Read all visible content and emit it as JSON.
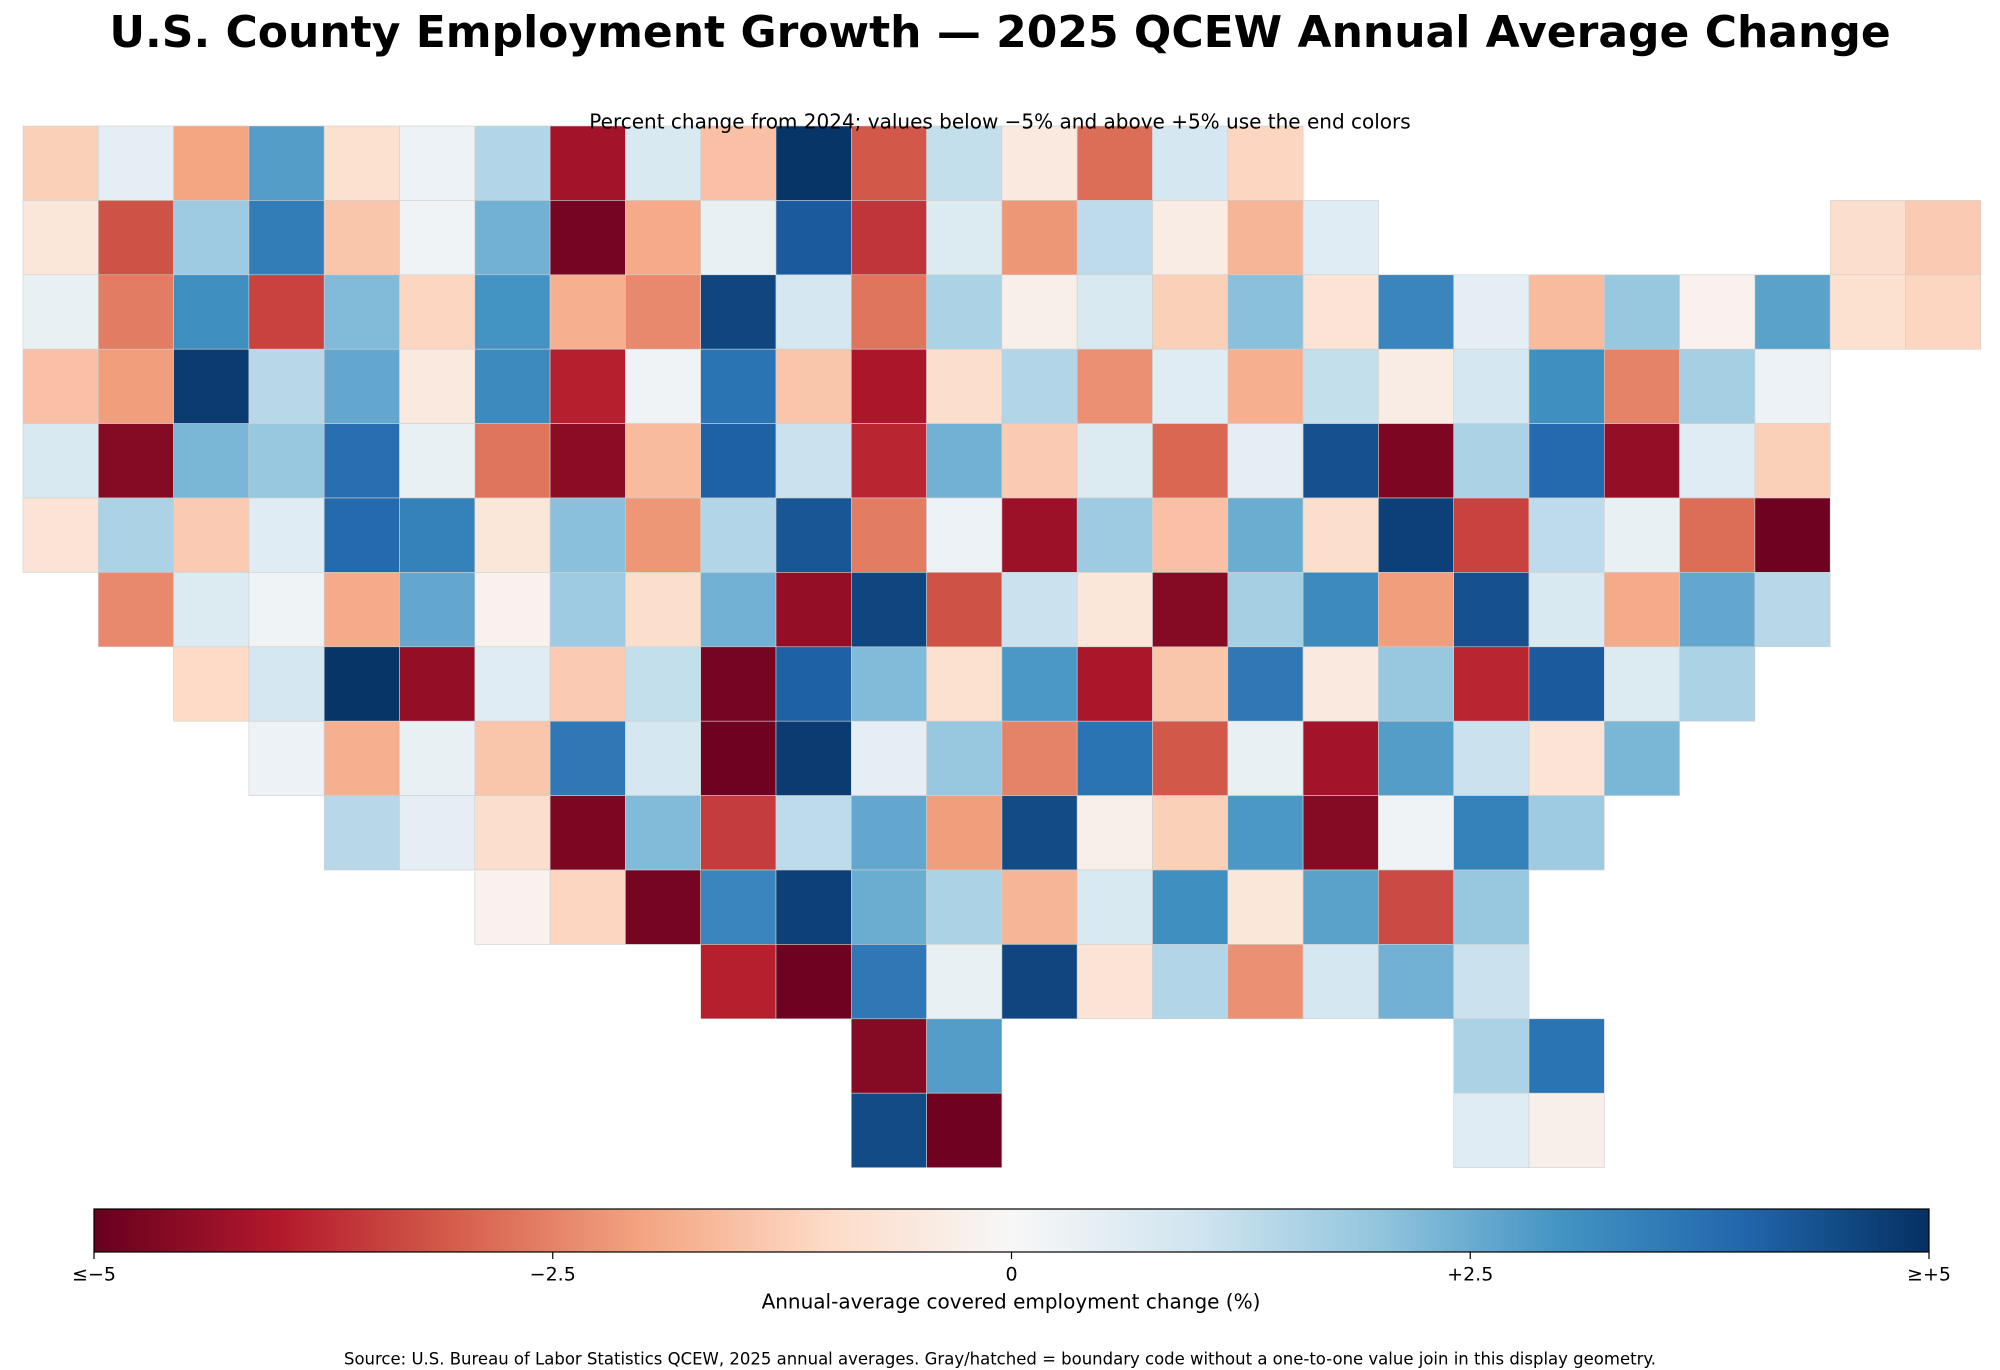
{
  "chart_data": {
    "type": "choropleth",
    "title": "U.S. County Employment Growth — 2025 QCEW Annual Average Change",
    "subtitle": "Percent change from 2024; values below −5% and above +5% use the end colors",
    "colorbar_label": "Annual-average covered employment change (%)",
    "source": "Source: U.S. Bureau of Labor Statistics QCEW, 2025 annual averages. Gray/hatched = boundary code without a one-to-one value join in this display geometry.",
    "colorscale": [
      "#67001f",
      "#b2182b",
      "#d6604d",
      "#f4a582",
      "#fddbc7",
      "#f7f7f7",
      "#d1e5f0",
      "#92c5de",
      "#4393c3",
      "#2166ac",
      "#053061"
    ],
    "clim": [
      -5,
      5
    ],
    "cticks": [
      {
        "value": -5,
        "label": "≤−5"
      },
      {
        "value": -2.5,
        "label": "−2.5"
      },
      0,
      {
        "value": 2.5,
        "label": "+2.5"
      },
      {
        "value": 5,
        "label": "≥+5"
      }
    ],
    "cells": [
      [
        -1.2,
        0.5,
        -2.0,
        2.8,
        -0.8,
        0.3,
        1.5,
        -4.2,
        0.8,
        -1.5,
        4.9,
        -3.1,
        1.2,
        -0.5,
        -2.8,
        0.9,
        -1.1,
        null,
        null,
        null,
        null,
        null,
        null,
        null,
        null,
        null
      ],
      [
        -0.6,
        -3.2,
        1.8,
        3.5,
        -1.4,
        0.2,
        2.4,
        -4.8,
        -1.9,
        0.4,
        4.2,
        -3.6,
        0.7,
        -2.2,
        1.3,
        -0.4,
        -1.7,
        0.6,
        null,
        null,
        null,
        null,
        null,
        null,
        -0.9,
        -1.3
      ],
      [
        0.4,
        -2.6,
        3.1,
        -3.4,
        2.2,
        -1.1,
        3.0,
        -1.8,
        -2.4,
        4.6,
        0.9,
        -2.7,
        1.6,
        -0.3,
        0.8,
        -1.2,
        2.1,
        -0.7,
        3.3,
        0.5,
        -1.6,
        1.9,
        -0.2,
        2.7,
        -0.8,
        -1.1
      ],
      [
        -1.5,
        -2.1,
        4.8,
        1.4,
        2.6,
        -0.5,
        3.2,
        -3.9,
        0.2,
        3.7,
        -1.4,
        -4.1,
        -0.9,
        1.5,
        -2.3,
        0.6,
        -1.8,
        1.2,
        -0.4,
        0.9,
        3.1,
        -2.5,
        1.7,
        0.3,
        null,
        null
      ],
      [
        0.8,
        -4.6,
        2.3,
        1.9,
        3.8,
        0.4,
        -2.7,
        -4.5,
        -1.6,
        4.1,
        1.1,
        -3.8,
        2.4,
        -1.3,
        0.7,
        -2.9,
        0.5,
        4.4,
        -4.7,
        1.6,
        3.9,
        -4.4,
        0.6,
        -1.2,
        null,
        null
      ],
      [
        -0.7,
        1.6,
        -1.3,
        0.6,
        3.9,
        3.4,
        -0.6,
        2.1,
        -2.2,
        1.5,
        4.3,
        -2.6,
        0.3,
        -4.3,
        1.8,
        -1.5,
        2.5,
        -0.9,
        4.7,
        -3.4,
        1.3,
        0.4,
        -2.8,
        -4.9,
        null,
        null
      ],
      [
        null,
        -2.4,
        0.7,
        0.2,
        -1.9,
        2.6,
        -0.2,
        1.8,
        -0.9,
        2.4,
        -4.4,
        4.6,
        -3.2,
        1.1,
        -0.6,
        -4.6,
        1.7,
        3.2,
        -2.1,
        4.4,
        0.8,
        -1.9,
        2.6,
        1.4,
        null,
        null
      ],
      [
        null,
        null,
        -1.0,
        0.9,
        4.9,
        -4.4,
        0.6,
        -1.3,
        1.2,
        -4.8,
        4.1,
        2.2,
        -0.8,
        2.9,
        -4.1,
        -1.4,
        3.6,
        -0.5,
        1.9,
        -3.8,
        4.2,
        0.7,
        1.6,
        null,
        null,
        null
      ],
      [
        null,
        null,
        null,
        0.3,
        -1.8,
        0.4,
        -1.4,
        3.6,
        0.9,
        -4.9,
        4.8,
        0.5,
        1.9,
        -2.5,
        3.7,
        -3.1,
        0.4,
        -4.2,
        2.8,
        1.1,
        -0.7,
        2.3,
        null,
        null,
        null,
        null
      ],
      [
        null,
        null,
        null,
        null,
        1.4,
        0.5,
        -0.9,
        -4.7,
        2.2,
        -3.5,
        1.3,
        2.6,
        -2.1,
        4.5,
        -0.3,
        -1.2,
        2.9,
        -4.6,
        0.2,
        3.4,
        1.8,
        null,
        null,
        null,
        null,
        null
      ],
      [
        null,
        null,
        null,
        null,
        null,
        null,
        -0.2,
        -1.1,
        -4.8,
        3.3,
        4.7,
        2.5,
        1.6,
        -1.7,
        0.8,
        3.1,
        -0.6,
        2.7,
        -3.3,
        1.9,
        null,
        null,
        null,
        null,
        null,
        null
      ],
      [
        null,
        null,
        null,
        null,
        null,
        null,
        null,
        null,
        null,
        -3.9,
        -4.9,
        3.6,
        0.4,
        4.6,
        -0.7,
        1.5,
        -2.3,
        0.9,
        2.4,
        1.1,
        null,
        null,
        null,
        null,
        null,
        null
      ],
      [
        null,
        null,
        null,
        null,
        null,
        null,
        null,
        null,
        null,
        null,
        null,
        -4.6,
        2.8,
        null,
        null,
        null,
        null,
        null,
        null,
        1.6,
        3.7,
        null,
        null,
        null,
        null,
        null
      ],
      [
        null,
        null,
        null,
        null,
        null,
        null,
        null,
        null,
        null,
        null,
        null,
        4.5,
        -4.9,
        null,
        null,
        null,
        null,
        null,
        null,
        0.6,
        -0.3,
        null,
        null,
        null,
        null,
        null
      ]
    ]
  }
}
